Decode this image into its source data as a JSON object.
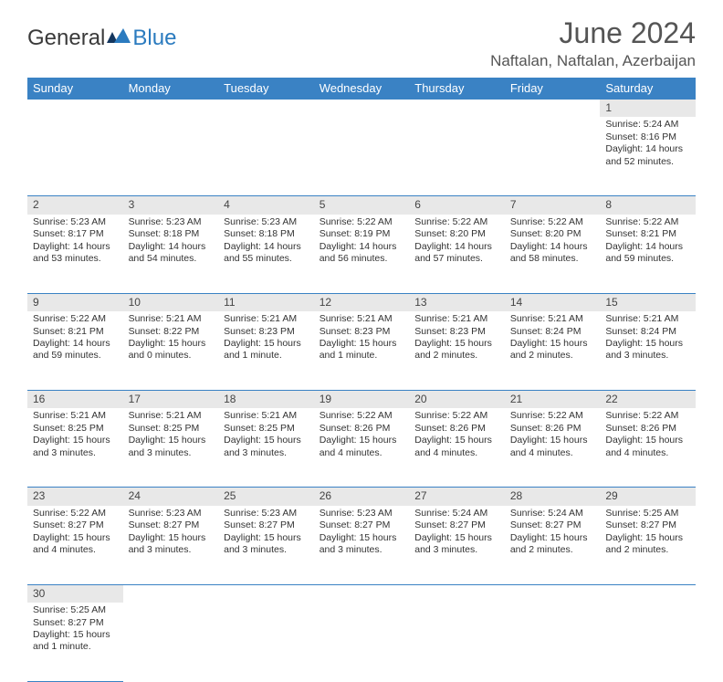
{
  "logo": {
    "text1": "General",
    "text2": "Blue"
  },
  "title": "June 2024",
  "location": "Naftalan, Naftalan, Azerbaijan",
  "colors": {
    "header_bg": "#3a82c4",
    "header_text": "#ffffff",
    "daynum_bg": "#e8e8e8",
    "border": "#3a82c4",
    "title_color": "#555555",
    "body_text": "#333333"
  },
  "dayHeaders": [
    "Sunday",
    "Monday",
    "Tuesday",
    "Wednesday",
    "Thursday",
    "Friday",
    "Saturday"
  ],
  "weeks": [
    {
      "nums": [
        "",
        "",
        "",
        "",
        "",
        "",
        "1"
      ],
      "cells": [
        "",
        "",
        "",
        "",
        "",
        "",
        "Sunrise: 5:24 AM\nSunset: 8:16 PM\nDaylight: 14 hours and 52 minutes."
      ]
    },
    {
      "nums": [
        "2",
        "3",
        "4",
        "5",
        "6",
        "7",
        "8"
      ],
      "cells": [
        "Sunrise: 5:23 AM\nSunset: 8:17 PM\nDaylight: 14 hours and 53 minutes.",
        "Sunrise: 5:23 AM\nSunset: 8:18 PM\nDaylight: 14 hours and 54 minutes.",
        "Sunrise: 5:23 AM\nSunset: 8:18 PM\nDaylight: 14 hours and 55 minutes.",
        "Sunrise: 5:22 AM\nSunset: 8:19 PM\nDaylight: 14 hours and 56 minutes.",
        "Sunrise: 5:22 AM\nSunset: 8:20 PM\nDaylight: 14 hours and 57 minutes.",
        "Sunrise: 5:22 AM\nSunset: 8:20 PM\nDaylight: 14 hours and 58 minutes.",
        "Sunrise: 5:22 AM\nSunset: 8:21 PM\nDaylight: 14 hours and 59 minutes."
      ]
    },
    {
      "nums": [
        "9",
        "10",
        "11",
        "12",
        "13",
        "14",
        "15"
      ],
      "cells": [
        "Sunrise: 5:22 AM\nSunset: 8:21 PM\nDaylight: 14 hours and 59 minutes.",
        "Sunrise: 5:21 AM\nSunset: 8:22 PM\nDaylight: 15 hours and 0 minutes.",
        "Sunrise: 5:21 AM\nSunset: 8:23 PM\nDaylight: 15 hours and 1 minute.",
        "Sunrise: 5:21 AM\nSunset: 8:23 PM\nDaylight: 15 hours and 1 minute.",
        "Sunrise: 5:21 AM\nSunset: 8:23 PM\nDaylight: 15 hours and 2 minutes.",
        "Sunrise: 5:21 AM\nSunset: 8:24 PM\nDaylight: 15 hours and 2 minutes.",
        "Sunrise: 5:21 AM\nSunset: 8:24 PM\nDaylight: 15 hours and 3 minutes."
      ]
    },
    {
      "nums": [
        "16",
        "17",
        "18",
        "19",
        "20",
        "21",
        "22"
      ],
      "cells": [
        "Sunrise: 5:21 AM\nSunset: 8:25 PM\nDaylight: 15 hours and 3 minutes.",
        "Sunrise: 5:21 AM\nSunset: 8:25 PM\nDaylight: 15 hours and 3 minutes.",
        "Sunrise: 5:21 AM\nSunset: 8:25 PM\nDaylight: 15 hours and 3 minutes.",
        "Sunrise: 5:22 AM\nSunset: 8:26 PM\nDaylight: 15 hours and 4 minutes.",
        "Sunrise: 5:22 AM\nSunset: 8:26 PM\nDaylight: 15 hours and 4 minutes.",
        "Sunrise: 5:22 AM\nSunset: 8:26 PM\nDaylight: 15 hours and 4 minutes.",
        "Sunrise: 5:22 AM\nSunset: 8:26 PM\nDaylight: 15 hours and 4 minutes."
      ]
    },
    {
      "nums": [
        "23",
        "24",
        "25",
        "26",
        "27",
        "28",
        "29"
      ],
      "cells": [
        "Sunrise: 5:22 AM\nSunset: 8:27 PM\nDaylight: 15 hours and 4 minutes.",
        "Sunrise: 5:23 AM\nSunset: 8:27 PM\nDaylight: 15 hours and 3 minutes.",
        "Sunrise: 5:23 AM\nSunset: 8:27 PM\nDaylight: 15 hours and 3 minutes.",
        "Sunrise: 5:23 AM\nSunset: 8:27 PM\nDaylight: 15 hours and 3 minutes.",
        "Sunrise: 5:24 AM\nSunset: 8:27 PM\nDaylight: 15 hours and 3 minutes.",
        "Sunrise: 5:24 AM\nSunset: 8:27 PM\nDaylight: 15 hours and 2 minutes.",
        "Sunrise: 5:25 AM\nSunset: 8:27 PM\nDaylight: 15 hours and 2 minutes."
      ]
    },
    {
      "nums": [
        "30",
        "",
        "",
        "",
        "",
        "",
        ""
      ],
      "cells": [
        "Sunrise: 5:25 AM\nSunset: 8:27 PM\nDaylight: 15 hours and 1 minute.",
        "",
        "",
        "",
        "",
        "",
        ""
      ]
    }
  ]
}
